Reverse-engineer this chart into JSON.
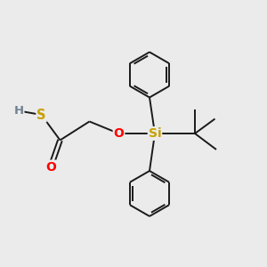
{
  "background_color": "#ebebeb",
  "fig_size": [
    3.0,
    3.0
  ],
  "dpi": 100,
  "atoms": {
    "H": {
      "color": "#708090"
    },
    "S": {
      "color": "#c8a000"
    },
    "O": {
      "color": "#ff0000"
    },
    "Si": {
      "color": "#c8a000"
    }
  },
  "bond_color": "#1a1a1a",
  "bond_lw": 1.4
}
